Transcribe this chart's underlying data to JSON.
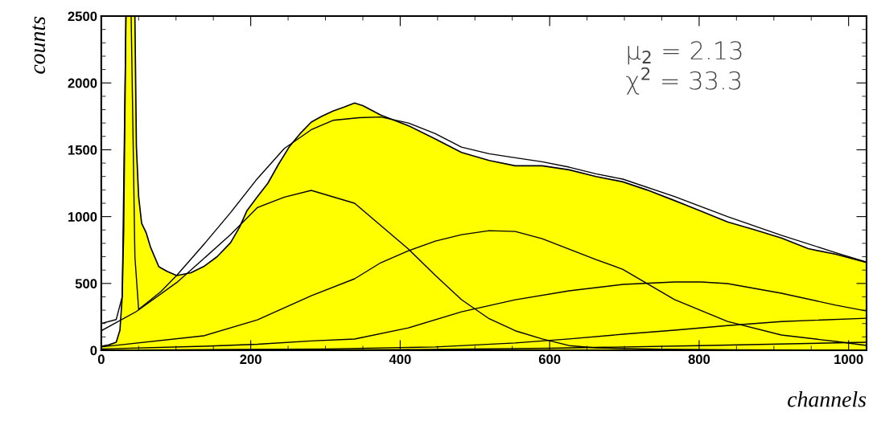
{
  "chart_data": {
    "type": "area",
    "xlabel": "channels",
    "ylabel": "counts",
    "xlim": [
      0,
      1024
    ],
    "ylim": [
      0,
      2500
    ],
    "xticks": [
      0,
      200,
      400,
      600,
      800,
      1000
    ],
    "yticks": [
      0,
      500,
      1000,
      1500,
      2000,
      2500
    ],
    "grid": false,
    "legend": false,
    "annotations": [
      "μ$_{2}$ = 2.13",
      "χ$^{2}$ = 33.3"
    ],
    "series": [
      {
        "color": "#ffff00",
        "x": [
          0,
          10,
          20,
          25,
          28,
          30,
          33,
          40,
          45,
          47,
          50,
          54,
          60,
          66,
          77,
          88,
          101,
          120,
          137,
          155,
          173,
          185,
          195,
          209,
          223,
          237,
          252,
          266,
          281,
          295,
          310,
          325,
          339,
          350,
          374,
          411,
          447,
          482,
          519,
          554,
          590,
          626,
          662,
          698,
          730,
          767,
          803,
          838,
          875,
          910,
          946,
          983,
          1024
        ],
        "values": [
          30,
          40,
          60,
          150,
          400,
          900,
          2500,
          2500,
          2500,
          1526,
          1150,
          950,
          880,
          770,
          625,
          590,
          559,
          580,
          626,
          700,
          805,
          920,
          1045,
          1150,
          1250,
          1390,
          1526,
          1620,
          1707,
          1750,
          1790,
          1820,
          1850,
          1830,
          1760,
          1680,
          1580,
          1480,
          1420,
          1380,
          1380,
          1350,
          1300,
          1260,
          1200,
          1120,
          1040,
          960,
          900,
          840,
          760,
          718,
          657
        ]
      },
      {
        "type": "line",
        "color": "#000000",
        "x": [
          0,
          20,
          28,
          33,
          40,
          45,
          50,
          60,
          80,
          101,
          137,
          173,
          209,
          245,
          281,
          310,
          345,
          374,
          411,
          447,
          482,
          519,
          554,
          590,
          626,
          662,
          698,
          767,
          838,
          910,
          983,
          1024
        ],
        "values": [
          200,
          230,
          400,
          2500,
          2500,
          700,
          306,
          350,
          440,
          560,
          790,
          1030,
          1285,
          1510,
          1650,
          1720,
          1740,
          1745,
          1700,
          1620,
          1520,
          1470,
          1440,
          1410,
          1370,
          1320,
          1280,
          1150,
          1000,
          860,
          730,
          660
        ]
      },
      {
        "type": "line",
        "color": "#000000",
        "x": [
          0,
          47,
          101,
          137,
          173,
          209,
          245,
          281,
          339,
          411,
          447,
          482,
          519,
          554,
          590,
          626,
          662,
          750,
          850,
          1024
        ],
        "values": [
          146,
          290,
          507,
          685,
          866,
          1068,
          1146,
          1196,
          1100,
          757,
          560,
          379,
          236,
          146,
          85,
          35,
          18,
          8,
          3,
          1
        ]
      },
      {
        "type": "line",
        "color": "#000000",
        "x": [
          0,
          137,
          209,
          281,
          339,
          374,
          411,
          447,
          482,
          519,
          554,
          590,
          626,
          662,
          698,
          767,
          838,
          910,
          983,
          1024
        ],
        "values": [
          25,
          108,
          228,
          408,
          535,
          655,
          745,
          817,
          865,
          895,
          889,
          835,
          757,
          679,
          605,
          379,
          216,
          114,
          66,
          36
        ]
      },
      {
        "type": "line",
        "color": "#000000",
        "x": [
          0,
          137,
          209,
          281,
          339,
          411,
          482,
          554,
          626,
          698,
          767,
          803,
          838,
          910,
          983,
          1024
        ],
        "values": [
          10,
          30,
          45,
          70,
          84,
          168,
          288,
          378,
          445,
          493,
          511,
          511,
          499,
          427,
          337,
          294
        ]
      },
      {
        "type": "line",
        "color": "#000000",
        "x": [
          0,
          300,
          447,
          554,
          626,
          698,
          767,
          838,
          910,
          1024
        ],
        "values": [
          0,
          10,
          25,
          55,
          85,
          120,
          150,
          185,
          215,
          240
        ]
      },
      {
        "type": "line",
        "color": "#000000",
        "x": [
          0,
          400,
          600,
          800,
          1024
        ],
        "values": [
          0,
          5,
          15,
          35,
          60
        ]
      }
    ]
  }
}
